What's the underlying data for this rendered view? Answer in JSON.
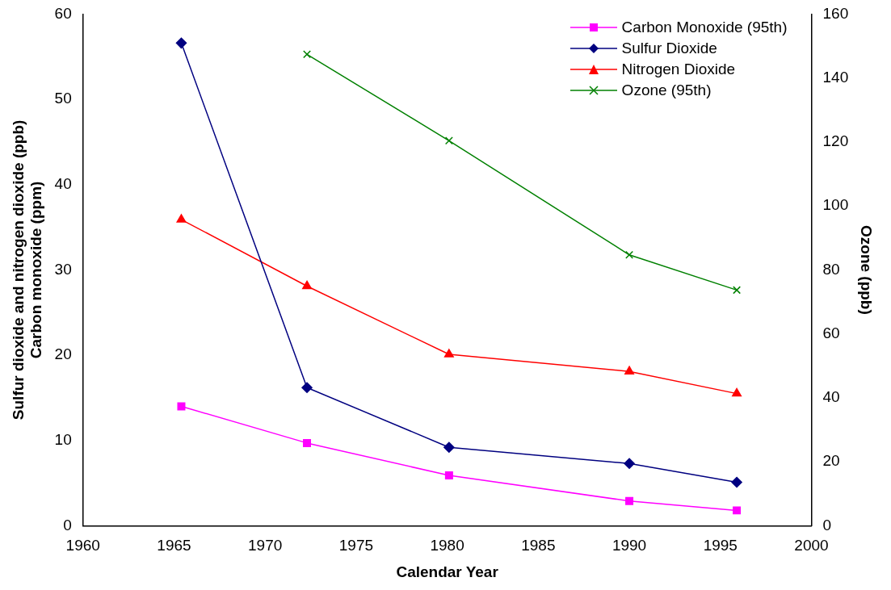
{
  "chart_data": {
    "type": "line",
    "xlabel": "Calendar Year",
    "ylabel": "Sulfur dioxide and nitrogen dioxide (ppb)\nCarbon monoxide (ppm)",
    "y2label": "Ozone (ppb)",
    "x": [
      1965.4,
      1972.3,
      1980.1,
      1990,
      1995.9
    ],
    "series": [
      {
        "name": "Carbon Monoxide (95th)",
        "color": "#ff00ff",
        "marker": "square",
        "values": [
          14.0,
          9.7,
          5.9,
          2.9,
          1.8
        ]
      },
      {
        "name": "Sulfur Dioxide",
        "color": "#000080",
        "marker": "diamond",
        "values": [
          56.6,
          16.2,
          9.2,
          7.3,
          5.1
        ]
      },
      {
        "name": "Nitrogen Dioxide",
        "color": "#ff0000",
        "marker": "triangle",
        "values": [
          35.9,
          28.1,
          20.1,
          18.1,
          15.5
        ]
      },
      {
        "name": "Ozone (95th)",
        "color": "#008000",
        "marker": "cross",
        "axis": "y2",
        "values": [
          null,
          147.4,
          120.4,
          84.7,
          73.7
        ]
      }
    ],
    "xlim": [
      1960,
      2000
    ],
    "xticks": [
      1960,
      1965,
      1970,
      1975,
      1980,
      1985,
      1990,
      1995,
      2000
    ],
    "ylim": [
      0,
      60
    ],
    "yticks": [
      0,
      10,
      20,
      30,
      40,
      50,
      60
    ],
    "y2lim": [
      0,
      160
    ],
    "y2ticks": [
      0,
      20,
      40,
      60,
      80,
      100,
      120,
      140,
      160
    ],
    "grid": false,
    "legend": "top right",
    "line_style": "solid"
  }
}
